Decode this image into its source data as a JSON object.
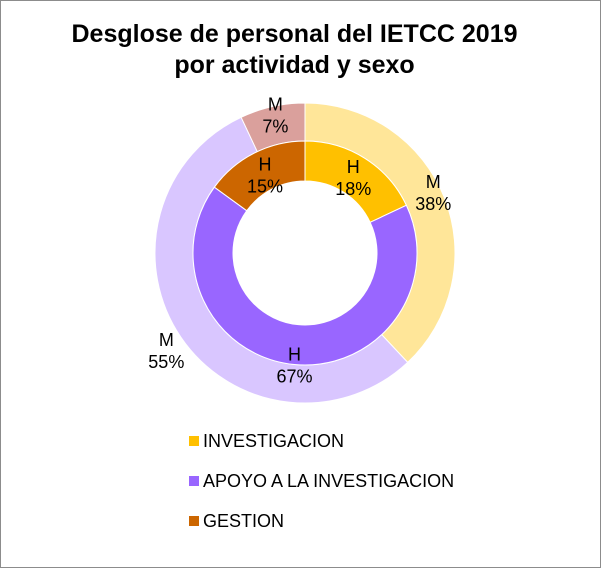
{
  "chart_data": {
    "type": "donut",
    "title_lines": [
      "Desglose de personal del IETCC 2019",
      "por actividad y sexo"
    ],
    "categories": [
      "INVESTIGACION",
      "APOYO A LA INVESTIGACION",
      "GESTION"
    ],
    "colors": {
      "INVESTIGACION": {
        "inner": "#ffc000",
        "outer": "#ffe699"
      },
      "APOYO A LA INVESTIGACION": {
        "inner": "#9966ff",
        "outer": "#d9c6ff"
      },
      "GESTION": {
        "inner": "#cc6600",
        "outer": "#daa09c"
      }
    },
    "series": [
      {
        "ring": "inner",
        "values": [
          18,
          67,
          15
        ],
        "labels": [
          {
            "sex": "H",
            "pct": "18%"
          },
          {
            "sex": "H",
            "pct": "67%"
          },
          {
            "sex": "H",
            "pct": "15%"
          }
        ]
      },
      {
        "ring": "outer",
        "values": [
          38,
          55,
          7
        ],
        "labels": [
          {
            "sex": "M",
            "pct": "38%"
          },
          {
            "sex": "M",
            "pct": "55%"
          },
          {
            "sex": "M",
            "pct": "7%"
          }
        ]
      }
    ],
    "legend": {
      "position": "bottom"
    }
  }
}
